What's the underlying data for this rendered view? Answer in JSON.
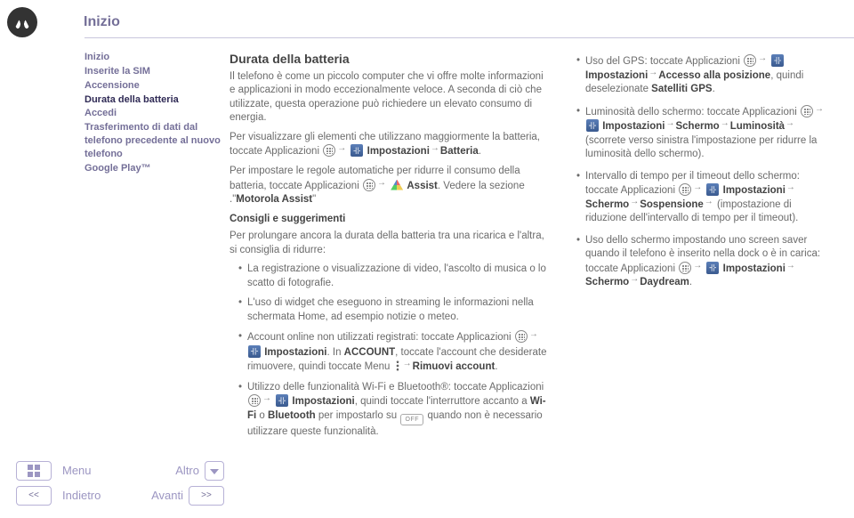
{
  "header": {
    "title": "Inizio"
  },
  "sidebar": {
    "items": [
      {
        "label": "Inizio"
      },
      {
        "label": "Inserite la SIM"
      },
      {
        "label": "Accensione"
      },
      {
        "label": "Durata della batteria"
      },
      {
        "label": "Accedi"
      },
      {
        "label": "Trasferimento di dati dal telefono precedente al nuovo telefono"
      },
      {
        "label": "Google Play™"
      }
    ]
  },
  "bottom": {
    "menu": "Menu",
    "altro": "Altro",
    "indietro": "Indietro",
    "avanti": "Avanti",
    "lt": "<<",
    "gt": ">>"
  },
  "main": {
    "heading": "Durata della batteria",
    "p1": "Il telefono è come un piccolo computer che vi offre molte informazioni e applicazioni in modo eccezionalmente veloce. A seconda di ciò che utilizzate, questa operazione può richiedere un elevato consumo di energia.",
    "p2a": "Per visualizzare gli elementi che utilizzano maggiormente la batteria, toccate Applicazioni",
    "p2b": "Impostazioni",
    "p2c": "Batteria",
    "p3a": "Per impostare le regole automatiche per ridurre il consumo della batteria, toccate Applicazioni",
    "p3b": "Assist",
    "p3c": ". Vedere la sezione .\"",
    "p3d": "Motorola Assist",
    "p3e": "\"",
    "sub": "Consigli e suggerimenti",
    "p4": "Per prolungare ancora la durata della batteria tra una ricarica e l'altra, si consiglia di ridurre:",
    "b1": "La registrazione o visualizzazione di video, l'ascolto di musica o lo scatto di fotografie.",
    "b2": "L'uso di widget che eseguono in streaming le informazioni nella schermata Home, ad esempio notizie o meteo.",
    "b3a": "Account online non utilizzati registrati: toccate Applicazioni",
    "b3b": "Impostazioni",
    "b3c": ". In ",
    "b3d": "ACCOUNT",
    "b3e": ", toccate l'account che desiderate rimuovere, quindi toccate Menu",
    "b3f": "Rimuovi account",
    "b4a": "Utilizzo delle funzionalità Wi-Fi e Bluetooth®: toccate Applicazioni",
    "b4b": "Impostazioni",
    "b4c": ", quindi toccate l'interruttore accanto a ",
    "b4d": "Wi-Fi",
    "b4e": " o ",
    "b4f": "Bluetooth",
    "b4g": " per impostarlo su ",
    "off": "OFF",
    "b4h": " quando non è necessario utilizzare queste funzionalità."
  },
  "right": {
    "r1a": "Uso del GPS: toccate Applicazioni",
    "r1b": "Impostazioni",
    "r1c": "Accesso alla posizione",
    "r1d": ", quindi deselezionate ",
    "r1e": "Satelliti GPS",
    "r2a": "Luminosità dello schermo: toccate Applicazioni",
    "r2b": "Impostazioni",
    "r2c": "Schermo",
    "r2d": "Luminosità",
    "r2e": " (scorrete verso sinistra l'impostazione per ridurre la luminosità dello schermo).",
    "r3a": "Intervallo di tempo per il timeout dello schermo: toccate Applicazioni",
    "r3b": "Impostazioni",
    "r3c": "Schermo",
    "r3d": "Sospensione",
    "r3e": " (impostazione di riduzione dell'intervallo di tempo per il timeout).",
    "r4a": "Uso dello schermo impostando uno screen saver quando il telefono è inserito nella dock o è in carica: toccate Applicazioni",
    "r4b": "Impostazioni",
    "r4c": "Schermo",
    "r4d": "Daydream"
  }
}
